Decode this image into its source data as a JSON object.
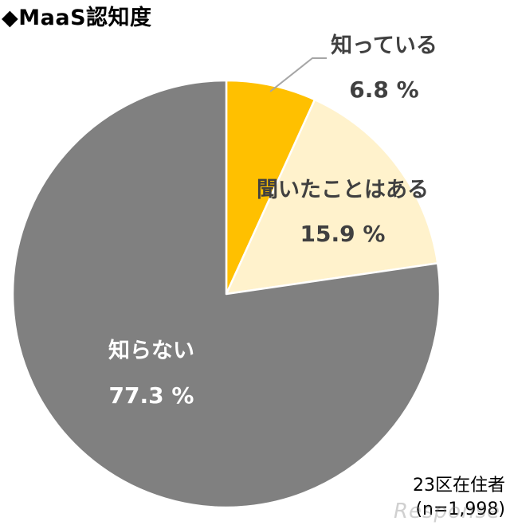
{
  "title": "◆MaaS認知度",
  "footnote": {
    "line1": "23区在住者",
    "line2": "(n=1,998)"
  },
  "watermark": "Response",
  "colors": {
    "knows": "#FFC000",
    "heard": "#FFF2CC",
    "unknown": "#808080",
    "border": "#ffffff",
    "leader": "#A6A6A6",
    "dark_text": "#404040",
    "light_text": "#ffffff"
  },
  "chart_data": {
    "type": "pie",
    "title": "◆MaaS認知度",
    "unit": "%",
    "slices": [
      {
        "key": "knows",
        "label": "知っている",
        "value": 6.8,
        "value_text": "6.8 %",
        "color": "#FFC000"
      },
      {
        "key": "heard",
        "label": "聞いたことはある",
        "value": 15.9,
        "value_text": "15.9 %",
        "color": "#FFF2CC"
      },
      {
        "key": "unknown",
        "label": "知らない",
        "value": 77.3,
        "value_text": "77.3 %",
        "color": "#808080"
      }
    ],
    "start": "12 o'clock",
    "direction": "clockwise",
    "legend": "none",
    "sample_note": "23区在住者 (n=1,998)"
  }
}
